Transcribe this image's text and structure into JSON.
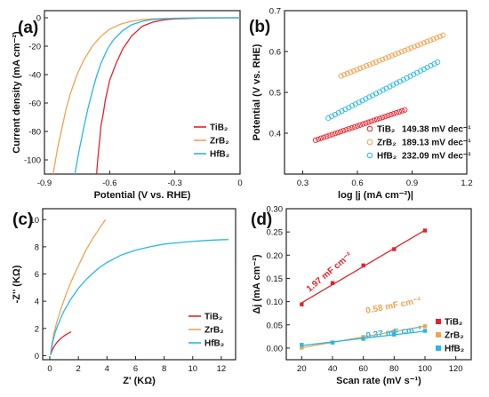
{
  "chart_data": [
    {
      "panel": "(a)",
      "type": "line",
      "xlabel": "Potential (V vs. RHE)",
      "ylabel": "Current density (mA cm⁻²)",
      "xlim": [
        -0.9,
        0
      ],
      "ylim": [
        -110,
        5
      ],
      "xticks": [
        "-0.9",
        "-0.6",
        "-0.3",
        "0"
      ],
      "yticks": [
        "0",
        "-20",
        "-40",
        "-60",
        "-80",
        "-100"
      ],
      "legend": "bottom-right",
      "series": [
        {
          "name": "TiB₂",
          "color": "#e3232a",
          "x": [
            -0.66,
            -0.655,
            -0.65,
            -0.645,
            -0.64,
            -0.63,
            -0.62,
            -0.6,
            -0.57,
            -0.54,
            -0.5,
            -0.45,
            -0.4,
            -0.35,
            -0.3,
            -0.2,
            -0.1,
            0.0
          ],
          "y": [
            -110,
            -100,
            -92,
            -85,
            -76,
            -68,
            -58,
            -44,
            -32,
            -22,
            -13,
            -6,
            -3,
            -1.5,
            -0.8,
            -0.3,
            -0.1,
            0
          ]
        },
        {
          "name": "ZrB₂",
          "color": "#f0a452",
          "x": [
            -0.86,
            -0.84,
            -0.82,
            -0.8,
            -0.78,
            -0.75,
            -0.72,
            -0.68,
            -0.64,
            -0.6,
            -0.55,
            -0.5,
            -0.45,
            -0.4,
            -0.3,
            -0.2,
            -0.1,
            0.0
          ],
          "y": [
            -110,
            -92,
            -78,
            -64,
            -53,
            -40,
            -30,
            -20,
            -13,
            -8,
            -4.5,
            -2.5,
            -1.3,
            -0.7,
            -0.3,
            -0.1,
            0,
            0
          ]
        },
        {
          "name": "HfB₂",
          "color": "#27b8e8",
          "x": [
            -0.76,
            -0.74,
            -0.72,
            -0.7,
            -0.68,
            -0.66,
            -0.64,
            -0.61,
            -0.58,
            -0.54,
            -0.5,
            -0.45,
            -0.4,
            -0.3,
            -0.2,
            -0.1,
            0.0
          ],
          "y": [
            -110,
            -93,
            -78,
            -64,
            -52,
            -41,
            -32,
            -22,
            -15,
            -9,
            -5,
            -2.5,
            -1.2,
            -0.4,
            -0.1,
            0,
            0
          ]
        }
      ]
    },
    {
      "panel": "(b)",
      "type": "scatter",
      "xlabel": "log |j (mA cm⁻²)|",
      "ylabel": "Potential (V vs. RHE)",
      "xlim": [
        0.2,
        1.2
      ],
      "ylim": [
        0.3,
        0.7
      ],
      "xticks": [
        "0.3",
        "0.6",
        "0.9",
        "1.2"
      ],
      "yticks": [
        "0.4",
        "0.5",
        "0.6",
        "0.7"
      ],
      "legend": "bottom-right",
      "series": [
        {
          "name": "TiB₂",
          "tafel": "149.38 mV dec⁻¹",
          "color": "#e3232a",
          "x_range": [
            0.37,
            0.86
          ],
          "y_range": [
            0.383,
            0.457
          ]
        },
        {
          "name": "ZrB₂",
          "tafel": "189.13 mV dec⁻¹",
          "color": "#f0a452",
          "x_range": [
            0.51,
            1.07
          ],
          "y_range": [
            0.54,
            0.64
          ]
        },
        {
          "name": "HfB₂",
          "tafel": "232.09 mV dec⁻¹",
          "color": "#27b8e8",
          "x_range": [
            0.44,
            1.04
          ],
          "y_range": [
            0.437,
            0.574
          ]
        }
      ]
    },
    {
      "panel": "(c)",
      "type": "line",
      "xlabel": "Z' (KΩ)",
      "ylabel": "-Z'' (KΩ)",
      "xlim": [
        -0.5,
        13
      ],
      "ylim": [
        -0.3,
        10.8
      ],
      "xticks": [
        "0",
        "2",
        "4",
        "6",
        "8",
        "10",
        "12"
      ],
      "yticks": [
        "0",
        "2",
        "4",
        "6",
        "8",
        "10"
      ],
      "legend": "bottom-right",
      "series": [
        {
          "name": "TiB₂",
          "color": "#e3232a",
          "x": [
            0.05,
            0.15,
            0.3,
            0.5,
            0.75,
            1.0,
            1.25,
            1.5
          ],
          "y": [
            0.05,
            0.35,
            0.68,
            0.98,
            1.25,
            1.45,
            1.62,
            1.75
          ]
        },
        {
          "name": "ZrB₂",
          "color": "#f0a452",
          "x": [
            0.05,
            0.15,
            0.3,
            0.5,
            0.8,
            1.2,
            1.6,
            2.0,
            2.5,
            3.0,
            3.5,
            3.9
          ],
          "y": [
            0.05,
            0.9,
            1.7,
            2.5,
            3.5,
            4.7,
            5.7,
            6.6,
            7.7,
            8.6,
            9.4,
            10.0
          ]
        },
        {
          "name": "HfB₂",
          "color": "#27b8e8",
          "x": [
            0.05,
            0.2,
            0.4,
            0.7,
            1.0,
            1.5,
            2.0,
            2.5,
            3.0,
            3.5,
            4.0,
            5.0,
            6.0,
            7.0,
            8.0,
            9.0,
            10.0,
            11.0,
            12.0,
            12.5
          ],
          "y": [
            0.05,
            1.0,
            1.8,
            2.6,
            3.3,
            4.2,
            4.95,
            5.55,
            6.05,
            6.5,
            6.85,
            7.4,
            7.75,
            8.0,
            8.2,
            8.3,
            8.4,
            8.47,
            8.52,
            8.53
          ]
        }
      ]
    },
    {
      "panel": "(d)",
      "type": "scatter",
      "xlabel": "Scan rate (mV s⁻¹)",
      "ylabel": "Δj (mA cm⁻²)",
      "xlim": [
        10,
        130
      ],
      "ylim": [
        -0.025,
        0.3
      ],
      "xticks": [
        "20",
        "40",
        "60",
        "80",
        "100",
        "120"
      ],
      "yticks": [
        "0.00",
        "0.05",
        "0.10",
        "0.15",
        "0.20",
        "0.25",
        "0.30"
      ],
      "legend": "bottom-right",
      "series": [
        {
          "name": "TiB₂",
          "capacitance": "1.97 mF cm⁻²",
          "color": "#e3232a",
          "x": [
            20,
            40,
            60,
            80,
            100
          ],
          "y": [
            0.094,
            0.14,
            0.178,
            0.213,
            0.253
          ]
        },
        {
          "name": "ZrB₂",
          "capacitance": "0.58 mF cm⁻²",
          "color": "#f0a452",
          "x": [
            20,
            40,
            60,
            80,
            100
          ],
          "y": [
            0.001,
            0.012,
            0.024,
            0.036,
            0.047
          ]
        },
        {
          "name": "HfB₂",
          "capacitance": "0.37 mF cm⁻²",
          "color": "#27b8e8",
          "x": [
            20,
            40,
            60,
            80,
            100
          ],
          "y": [
            0.007,
            0.012,
            0.02,
            0.029,
            0.037
          ]
        }
      ]
    }
  ]
}
